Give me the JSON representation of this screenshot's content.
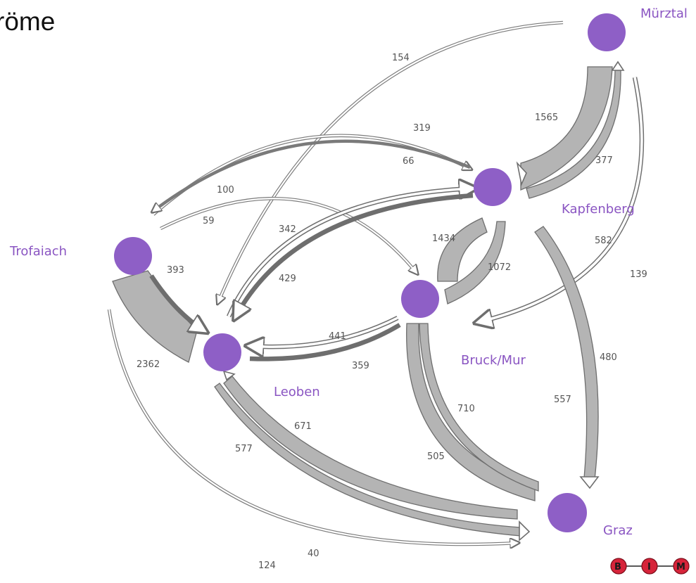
{
  "title": "röme",
  "nodes": [
    {
      "id": "muerztal",
      "label": "Mürztal"
    },
    {
      "id": "kapfenberg",
      "label": "Kapfenberg"
    },
    {
      "id": "trofaiach",
      "label": "Trofaiach"
    },
    {
      "id": "bruck",
      "label": "Bruck/Mur"
    },
    {
      "id": "leoben",
      "label": "Leoben"
    },
    {
      "id": "graz",
      "label": "Graz"
    }
  ],
  "flows": [
    {
      "from": "muerztal",
      "to": "kapfenberg",
      "value": "1565"
    },
    {
      "from": "kapfenberg",
      "to": "muerztal",
      "value": "377"
    },
    {
      "from": "muerztal",
      "to": "leoben",
      "value": "154"
    },
    {
      "from": "leoben",
      "to": "kapfenberg",
      "value": "319"
    },
    {
      "from": "kapfenberg",
      "to": "trofaiach",
      "value": "66"
    },
    {
      "from": "bruck",
      "to": "trofaiach",
      "value": "100"
    },
    {
      "from": "trofaiach",
      "to": "bruck",
      "value": "59"
    },
    {
      "from": "leoben",
      "to": "kapfenberg",
      "value": "342"
    },
    {
      "from": "kapfenberg",
      "to": "leoben",
      "value": "429"
    },
    {
      "from": "trofaiach",
      "to": "leoben",
      "value": "393"
    },
    {
      "from": "leoben",
      "to": "trofaiach",
      "value": "2362"
    },
    {
      "from": "bruck",
      "to": "kapfenberg",
      "value": "1434"
    },
    {
      "from": "kapfenberg",
      "to": "bruck",
      "value": "1072"
    },
    {
      "from": "muerztal",
      "to": "bruck",
      "value": "582"
    },
    {
      "from": "bruck",
      "to": "muerztal",
      "value": "139"
    },
    {
      "from": "bruck",
      "to": "leoben",
      "value": "441"
    },
    {
      "from": "leoben",
      "to": "bruck",
      "value": "359"
    },
    {
      "from": "kapfenberg",
      "to": "graz",
      "value": "480"
    },
    {
      "from": "graz",
      "to": "kapfenberg",
      "value": "557"
    },
    {
      "from": "bruck",
      "to": "graz",
      "value": "710"
    },
    {
      "from": "graz",
      "to": "bruck",
      "value": "505"
    },
    {
      "from": "leoben",
      "to": "graz",
      "value": "671"
    },
    {
      "from": "graz",
      "to": "leoben",
      "value": "577"
    },
    {
      "from": "trofaiach",
      "to": "graz",
      "value": "40"
    },
    {
      "from": "graz",
      "to": "trofaiach",
      "value": "124"
    }
  ],
  "logo": {
    "letters": [
      "B",
      "I",
      "M"
    ]
  },
  "colors": {
    "node": "#8e5fc6",
    "label": "#8a55c2",
    "band": "#b4b4b4",
    "outline": "#6e6e6e",
    "logo": "#d6243a"
  }
}
